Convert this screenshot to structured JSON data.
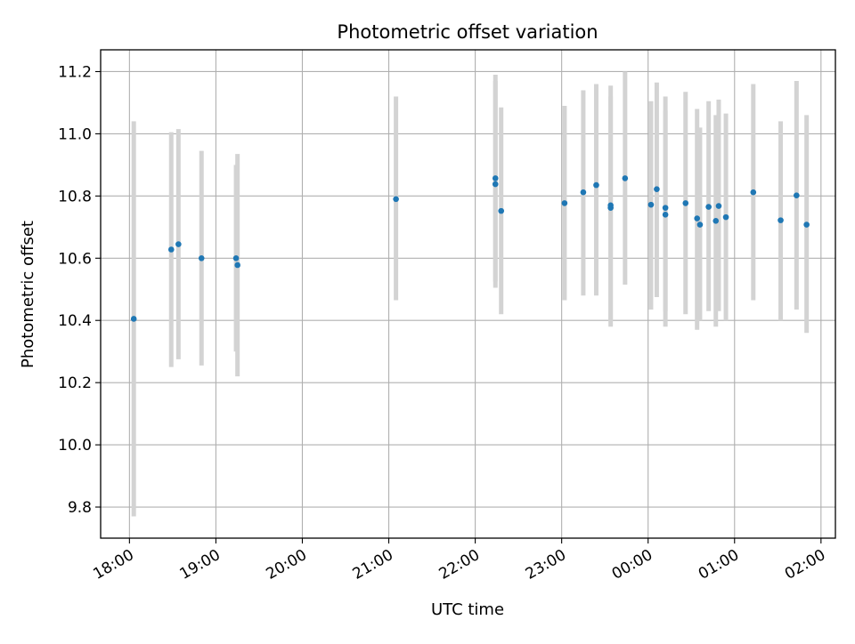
{
  "chart_data": {
    "type": "scatter",
    "title": "Photometric offset variation",
    "xlabel": "UTC time",
    "ylabel": "Photometric offset",
    "grid": true,
    "x_ticks": [
      "18:00",
      "19:00",
      "20:00",
      "21:00",
      "22:00",
      "23:00",
      "00:00",
      "01:00",
      "02:00"
    ],
    "y_ticks": [
      "9.8",
      "10.0",
      "10.2",
      "10.4",
      "10.6",
      "10.8",
      "11.0",
      "11.2"
    ],
    "xlim": [
      "17:40",
      "02:10"
    ],
    "ylim": [
      9.7,
      11.27
    ],
    "colors": {
      "points": "#1f77b4",
      "error_bars": "#d3d3d3"
    },
    "points": [
      {
        "time": "18:03",
        "y": 10.405,
        "ylow": 9.77,
        "yhigh": 11.04
      },
      {
        "time": "18:29",
        "y": 10.628,
        "ylow": 10.25,
        "yhigh": 11.005
      },
      {
        "time": "18:34",
        "y": 10.645,
        "ylow": 10.275,
        "yhigh": 11.015
      },
      {
        "time": "18:50",
        "y": 10.6,
        "ylow": 10.255,
        "yhigh": 10.945
      },
      {
        "time": "19:14",
        "y": 10.6,
        "ylow": 10.3,
        "yhigh": 10.9
      },
      {
        "time": "19:15",
        "y": 10.578,
        "ylow": 10.22,
        "yhigh": 10.935
      },
      {
        "time": "21:05",
        "y": 10.79,
        "ylow": 10.465,
        "yhigh": 11.12
      },
      {
        "time": "22:14",
        "y": 10.857,
        "ylow": 10.525,
        "yhigh": 11.19
      },
      {
        "time": "22:14",
        "y": 10.838,
        "ylow": 10.505,
        "yhigh": 11.17
      },
      {
        "time": "22:18",
        "y": 10.752,
        "ylow": 10.42,
        "yhigh": 11.085
      },
      {
        "time": "23:02",
        "y": 10.777,
        "ylow": 10.465,
        "yhigh": 11.09
      },
      {
        "time": "23:15",
        "y": 10.812,
        "ylow": 10.48,
        "yhigh": 11.14
      },
      {
        "time": "23:24",
        "y": 10.835,
        "ylow": 10.48,
        "yhigh": 11.16
      },
      {
        "time": "23:34",
        "y": 10.77,
        "ylow": 10.38,
        "yhigh": 11.155
      },
      {
        "time": "23:34",
        "y": 10.762,
        "ylow": 10.4,
        "yhigh": 11.12
      },
      {
        "time": "23:44",
        "y": 10.857,
        "ylow": 10.515,
        "yhigh": 11.2
      },
      {
        "time": "00:02",
        "y": 10.772,
        "ylow": 10.435,
        "yhigh": 11.105
      },
      {
        "time": "00:06",
        "y": 10.822,
        "ylow": 10.475,
        "yhigh": 11.165
      },
      {
        "time": "00:12",
        "y": 10.762,
        "ylow": 10.38,
        "yhigh": 11.12
      },
      {
        "time": "00:12",
        "y": 10.74,
        "ylow": 10.43,
        "yhigh": 11.075
      },
      {
        "time": "00:26",
        "y": 10.777,
        "ylow": 10.42,
        "yhigh": 11.135
      },
      {
        "time": "00:34",
        "y": 10.728,
        "ylow": 10.37,
        "yhigh": 11.08
      },
      {
        "time": "00:36",
        "y": 10.708,
        "ylow": 10.4,
        "yhigh": 11.02
      },
      {
        "time": "00:42",
        "y": 10.765,
        "ylow": 10.43,
        "yhigh": 11.105
      },
      {
        "time": "00:47",
        "y": 10.72,
        "ylow": 10.38,
        "yhigh": 11.06
      },
      {
        "time": "00:49",
        "y": 10.768,
        "ylow": 10.43,
        "yhigh": 11.11
      },
      {
        "time": "00:54",
        "y": 10.732,
        "ylow": 10.4,
        "yhigh": 11.065
      },
      {
        "time": "01:13",
        "y": 10.812,
        "ylow": 10.465,
        "yhigh": 11.16
      },
      {
        "time": "01:32",
        "y": 10.722,
        "ylow": 10.4,
        "yhigh": 11.04
      },
      {
        "time": "01:43",
        "y": 10.802,
        "ylow": 10.435,
        "yhigh": 11.17
      },
      {
        "time": "01:50",
        "y": 10.708,
        "ylow": 10.36,
        "yhigh": 11.06
      }
    ]
  }
}
